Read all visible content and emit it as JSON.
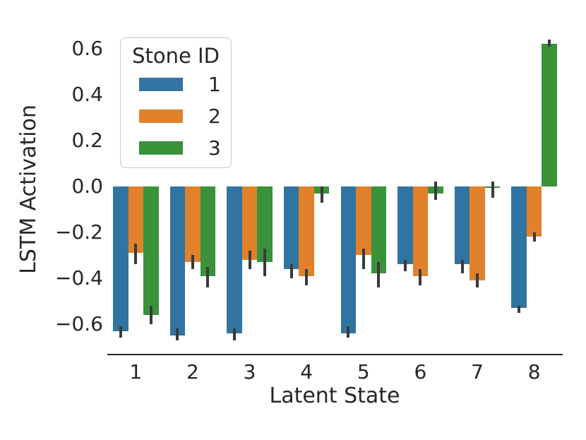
{
  "figure": {
    "background": "#ffffff"
  },
  "chart_data": {
    "type": "bar",
    "title": "",
    "xlabel": "Latent State",
    "ylabel": "LSTM Activation",
    "categories": [
      "1",
      "2",
      "3",
      "4",
      "5",
      "6",
      "7",
      "8"
    ],
    "legend": {
      "title": "Stone ID",
      "position": "upper left",
      "entries": [
        {
          "label": "1",
          "color": "#3274a1"
        },
        {
          "label": "2",
          "color": "#e1812c"
        },
        {
          "label": "3",
          "color": "#3a923a"
        }
      ]
    },
    "series": [
      {
        "name": "1",
        "color": "#3274a1",
        "values": [
          -0.63,
          -0.65,
          -0.64,
          -0.36,
          -0.64,
          -0.34,
          -0.34,
          -0.53
        ],
        "ci": [
          [
            -0.66,
            -0.61
          ],
          [
            -0.67,
            -0.62
          ],
          [
            -0.67,
            -0.62
          ],
          [
            -0.4,
            -0.34
          ],
          [
            -0.66,
            -0.61
          ],
          [
            -0.37,
            -0.32
          ],
          [
            -0.38,
            -0.32
          ],
          [
            -0.55,
            -0.52
          ]
        ]
      },
      {
        "name": "2",
        "color": "#e1812c",
        "values": [
          -0.29,
          -0.33,
          -0.32,
          -0.39,
          -0.3,
          -0.39,
          -0.41,
          -0.22
        ],
        "ci": [
          [
            -0.34,
            -0.25
          ],
          [
            -0.36,
            -0.3
          ],
          [
            -0.36,
            -0.28
          ],
          [
            -0.43,
            -0.36
          ],
          [
            -0.36,
            -0.27
          ],
          [
            -0.43,
            -0.36
          ],
          [
            -0.44,
            -0.38
          ],
          [
            -0.24,
            -0.2
          ]
        ]
      },
      {
        "name": "3",
        "color": "#3a923a",
        "values": [
          -0.56,
          -0.39,
          -0.33,
          -0.03,
          -0.38,
          -0.03,
          -0.005,
          0.62
        ],
        "ci": [
          [
            -0.6,
            -0.52
          ],
          [
            -0.44,
            -0.35
          ],
          [
            -0.39,
            -0.27
          ],
          [
            -0.07,
            0.0
          ],
          [
            -0.44,
            -0.33
          ],
          [
            -0.06,
            0.02
          ],
          [
            -0.05,
            0.02
          ],
          [
            0.61,
            0.64
          ]
        ]
      }
    ],
    "ylim": [
      -0.73,
      0.72
    ],
    "yticks": [
      0.6,
      0.4,
      0.2,
      0.0,
      -0.2,
      -0.4,
      -0.6
    ],
    "ytick_labels": [
      "0.6",
      "0.4",
      "0.2",
      "0.0",
      "−0.2",
      "−0.4",
      "−0.6"
    ],
    "grid": false,
    "error_bar_color": "#3a3a3a",
    "text_color": "#262626",
    "spine_color": "#262626"
  }
}
